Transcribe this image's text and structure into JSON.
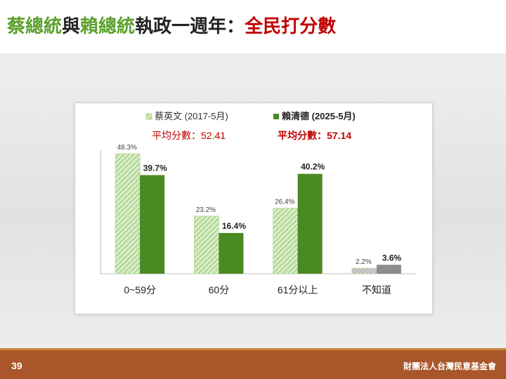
{
  "slide": {
    "title_parts": [
      {
        "text": "蔡總統",
        "color": "green"
      },
      {
        "text": "與",
        "color": "dark"
      },
      {
        "text": "賴總統",
        "color": "green"
      },
      {
        "text": "執政一週年：",
        "color": "dark"
      },
      {
        "text": "全民打分數",
        "color": "red"
      }
    ],
    "page_number": "39",
    "organization": "財團法人台灣民意基金會"
  },
  "colors": {
    "title_green": "#5aa02c",
    "title_red": "#c00000",
    "series_tsai": "#b3d99a",
    "series_lai": "#4a8a22",
    "footer": "#a8562a"
  },
  "chart_data": {
    "type": "bar",
    "categories": [
      "0~59分",
      "60分",
      "61分以上",
      "不知道"
    ],
    "series": [
      {
        "name": "蔡英文 (2017-5月)",
        "values": [
          48.3,
          23.2,
          26.4,
          2.2
        ],
        "labels": [
          "48.3%",
          "23.2%",
          "26.4%",
          "2.2%"
        ],
        "pattern": "hatched",
        "color": "#b3d99a"
      },
      {
        "name": "賴清德 (2025-5月)",
        "values": [
          39.7,
          16.4,
          40.2,
          3.6
        ],
        "labels": [
          "39.7%",
          "16.4%",
          "40.2%",
          "3.6%"
        ],
        "pattern": "solid",
        "color": "#4a8a22"
      }
    ],
    "averages": [
      "平均分數：52.41",
      "平均分數：57.14"
    ],
    "ylim": [
      0,
      50
    ],
    "legend_position": "top"
  }
}
